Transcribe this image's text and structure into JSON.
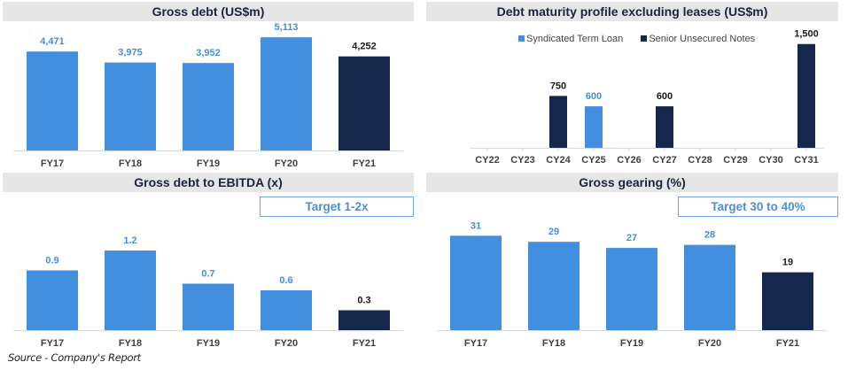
{
  "colors": {
    "light_bar": "#418fde",
    "dark_bar": "#15284b",
    "header_bg": "#e6e6e6",
    "axis": "#d9d9d9"
  },
  "source": "Source - Company's Report",
  "chart_data": [
    {
      "type": "bar",
      "title": "Gross debt (US$m)",
      "xlabel": "",
      "ylabel": "",
      "categories": [
        "FY17",
        "FY18",
        "FY19",
        "FY20",
        "FY21"
      ],
      "values": [
        4471,
        3975,
        3952,
        5113,
        4252
      ],
      "labels": [
        "4,471",
        "3,975",
        "3,952",
        "5,113",
        "4,252"
      ],
      "highlight": [
        false,
        false,
        false,
        false,
        true
      ],
      "ylim": [
        0,
        5600
      ],
      "grid": false
    },
    {
      "type": "bar",
      "title": "Debt maturity profile excluding leases (US$m)",
      "xlabel": "",
      "ylabel": "",
      "categories": [
        "CY22",
        "CY23",
        "CY24",
        "CY25",
        "CY26",
        "CY27",
        "CY28",
        "CY29",
        "CY30",
        "CY31"
      ],
      "series": [
        {
          "name": "Syndicated Term Loan",
          "values": [
            0,
            0,
            0,
            600,
            0,
            0,
            0,
            0,
            0,
            0
          ]
        },
        {
          "name": "Senior Unsecured Notes",
          "values": [
            0,
            0,
            750,
            0,
            0,
            600,
            0,
            0,
            0,
            1500
          ]
        }
      ],
      "labels": [
        "",
        "",
        "750",
        "600",
        "",
        "600",
        "",
        "",
        "",
        "1,500"
      ],
      "legend": "top-center",
      "ylim": [
        0,
        1650
      ],
      "grid": false
    },
    {
      "type": "bar",
      "title": "Gross debt to EBITDA (x)",
      "annotation": "Target 1-2x",
      "xlabel": "",
      "ylabel": "",
      "categories": [
        "FY17",
        "FY18",
        "FY19",
        "FY20",
        "FY21"
      ],
      "values": [
        0.9,
        1.2,
        0.7,
        0.6,
        0.3
      ],
      "labels": [
        "0.9",
        "1.2",
        "0.7",
        "0.6",
        "0.3"
      ],
      "highlight": [
        false,
        false,
        false,
        false,
        true
      ],
      "ylim": [
        0,
        1.4
      ],
      "grid": false
    },
    {
      "type": "bar",
      "title": "Gross gearing (%)",
      "annotation": "Target 30 to 40%",
      "xlabel": "",
      "ylabel": "",
      "categories": [
        "FY17",
        "FY18",
        "FY19",
        "FY20",
        "FY21"
      ],
      "values": [
        31,
        29,
        27,
        28,
        19
      ],
      "labels": [
        "31",
        "29",
        "27",
        "28",
        "19"
      ],
      "highlight": [
        false,
        false,
        false,
        false,
        true
      ],
      "ylim": [
        0,
        34
      ],
      "grid": false
    }
  ]
}
